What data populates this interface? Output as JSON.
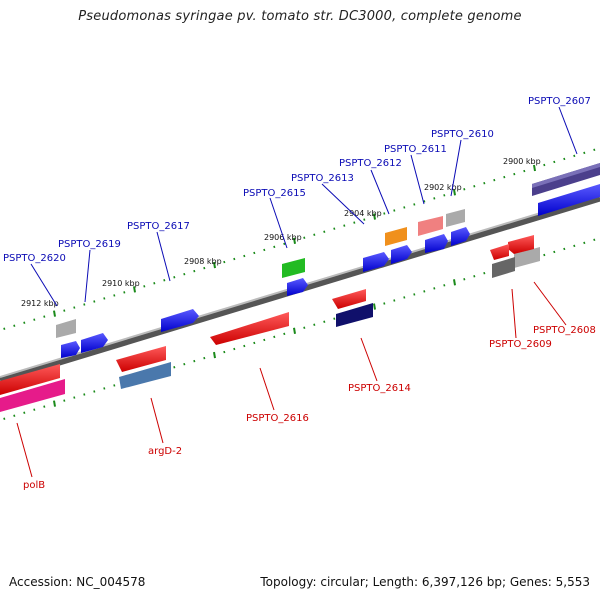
{
  "title": "Pseudomonas syringae pv. tomato str. DC3000, complete genome",
  "footer": {
    "accession": "Accession: NC_004578",
    "topology": "Topology: circular; Length: 6,397,126 bp; Genes: 5,553"
  },
  "scale_labels": [
    "2900 kbp",
    "2902 kbp",
    "2904 kbp",
    "2906 kbp",
    "2908 kbp",
    "2910 kbp",
    "2912 kbp"
  ],
  "top_strand_genes": [
    "PSPTO_2607",
    "PSPTO_2610",
    "PSPTO_2611",
    "PSPTO_2612",
    "PSPTO_2613",
    "PSPTO_2615",
    "PSPTO_2617",
    "PSPTO_2619",
    "PSPTO_2620"
  ],
  "bottom_strand_genes": [
    "PSPTO_2608",
    "PSPTO_2609",
    "PSPTO_2614",
    "PSPTO_2616",
    "argD-2",
    "polB"
  ],
  "colors": {
    "backbone": "#8a8a8a",
    "forward_cds": "#0000ee",
    "reverse_cds": "#ee0000",
    "top_label": "#0b0bb5",
    "bottom_label": "#cc0000",
    "scale_ticks": "#1a8a1a"
  }
}
